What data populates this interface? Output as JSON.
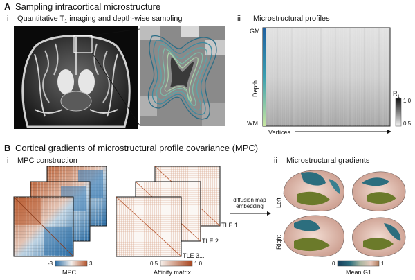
{
  "sectionA": {
    "letter": "A",
    "title": "Sampling intracortical microstructure",
    "panel_i": {
      "label": "i",
      "caption_pre": "Quantitative T",
      "caption_sub": "1",
      "caption_post": " imaging and depth-wise sampling"
    },
    "panel_ii": {
      "label": "ii",
      "caption": "Microstructural profiles",
      "y_top": "GM",
      "y_mid": "Depth",
      "y_bottom": "WM",
      "x_label": "Vertices",
      "colorbar_title": "R",
      "colorbar_title_sub": "1",
      "colorbar_max": "1.0",
      "colorbar_min": "0.5"
    }
  },
  "sectionB": {
    "letter": "B",
    "title": "Cortical gradients of microstructural profile covariance (MPC)",
    "panel_i": {
      "label": "i",
      "caption": "MPC construction",
      "mpc_min": "-3",
      "mpc_max": "3",
      "mpc_label": "MPC",
      "aff_min": "0.5",
      "aff_max": "1.0",
      "aff_label": "Affinity matrix",
      "tle1": "TLE 1",
      "tle2": "TLE 2",
      "tle3": "TLE 3...",
      "arrow_line1": "diffusion map",
      "arrow_line2": "embedding"
    },
    "panel_ii": {
      "label": "ii",
      "caption": "Microstructural gradients",
      "left": "Left",
      "right": "Right",
      "cb_min": "0",
      "cb_max": "1",
      "cb_label": "Mean G1"
    }
  },
  "colors": {
    "mpc_pos": "#b5532a",
    "mpc_neg": "#2c6ea6",
    "g1_low": "#2c6e7e",
    "g1_mid": "#e8c9bd",
    "g1_green": "#6b7a2a"
  }
}
